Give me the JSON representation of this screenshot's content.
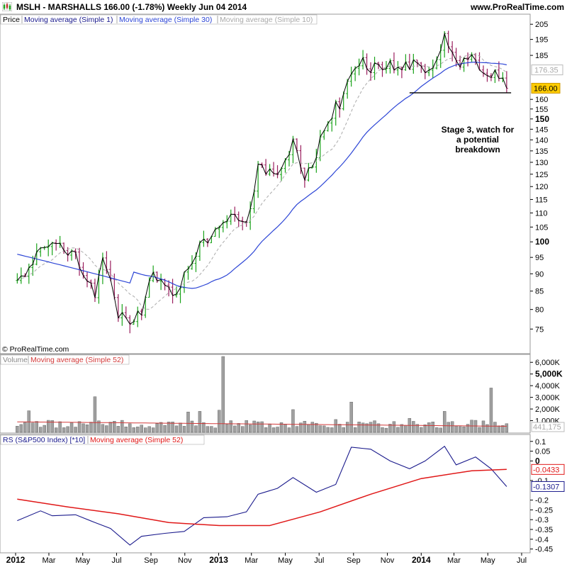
{
  "header": {
    "title": "MSLH - MARSHALLS    166.00 (-1.78%)    Weekly  Jun 04 2014",
    "url": "www.ProRealTime.com"
  },
  "colors": {
    "up": "#1aa31a",
    "down": "#9a1f5e",
    "ma1": "#000000",
    "ma30": "#2d46d6",
    "ma10": "#aaaaaa",
    "vol": "#a0a0a0",
    "volma": "#d23a3a",
    "rs": "#1a1a8c",
    "rsma": "#e01818"
  },
  "price_panel": {
    "legend": [
      "Price",
      "Moving average (Simple 1)",
      "Moving average (Simple 30)",
      "Moving average (Simple 10)"
    ],
    "copyright": "© ProRealTime.com",
    "annotation": [
      "Stage 3, watch for",
      "a potential",
      "breakdown"
    ],
    "ma30_value_label": "176.35",
    "last_price_label": "166.00",
    "bold_ticks": [
      "150",
      "100"
    ]
  },
  "volume_panel": {
    "legend": [
      "Volume",
      "Moving average (Simple 52)"
    ],
    "ma_value_label": "441,175",
    "bold_ticks": [
      "5,000K"
    ]
  },
  "rs_panel": {
    "legend": [
      "RS (S&P500 Index) [*10]",
      "Moving average (Simple 52)"
    ],
    "rs_value_label": "-0.1307",
    "ma_value_label": "-0.0433",
    "bold_ticks": [
      "0"
    ]
  },
  "x_axis": {
    "labels": [
      "2012",
      "Mar",
      "May",
      "Jul",
      "Sep",
      "Nov",
      "2013",
      "Mar",
      "May",
      "Jul",
      "Sep",
      "Nov",
      "2014",
      "Mar",
      "May",
      "Jul"
    ],
    "bold": [
      "2012",
      "2013",
      "2014"
    ]
  },
  "chart_data": [
    {
      "type": "candlestick",
      "title": "MSLH - MARSHALLS",
      "x_range": [
        "2012-01",
        "2014-07"
      ],
      "y_scale": "log",
      "ylim": [
        71,
        208
      ],
      "y_ticks": [
        "205",
        "195",
        "185",
        "176.35",
        "166.00",
        "160",
        "155",
        "150",
        "145",
        "140",
        "135",
        "130",
        "125",
        "120",
        "115",
        "110",
        "105",
        "100",
        "95",
        "90",
        "85",
        "80",
        "75"
      ],
      "close_series": [
        {
          "date": "2012-01-04",
          "close": 87
        },
        {
          "date": "2012-01-25",
          "close": 92
        },
        {
          "date": "2012-02-15",
          "close": 99
        },
        {
          "date": "2012-03-07",
          "close": 101
        },
        {
          "date": "2012-03-28",
          "close": 98
        },
        {
          "date": "2012-04-18",
          "close": 96
        },
        {
          "date": "2012-05-09",
          "close": 88
        },
        {
          "date": "2012-05-23",
          "close": 84
        },
        {
          "date": "2012-06-06",
          "close": 93
        },
        {
          "date": "2012-06-20",
          "close": 87
        },
        {
          "date": "2012-07-04",
          "close": 79
        },
        {
          "date": "2012-07-25",
          "close": 77
        },
        {
          "date": "2012-08-15",
          "close": 80
        },
        {
          "date": "2012-09-05",
          "close": 90
        },
        {
          "date": "2012-09-26",
          "close": 87
        },
        {
          "date": "2012-10-17",
          "close": 85
        },
        {
          "date": "2012-11-07",
          "close": 92
        },
        {
          "date": "2012-11-28",
          "close": 99
        },
        {
          "date": "2012-12-19",
          "close": 101
        },
        {
          "date": "2013-01-09",
          "close": 108
        },
        {
          "date": "2013-01-30",
          "close": 109
        },
        {
          "date": "2013-02-20",
          "close": 106
        },
        {
          "date": "2013-03-13",
          "close": 127
        },
        {
          "date": "2013-04-03",
          "close": 126
        },
        {
          "date": "2013-04-24",
          "close": 127
        },
        {
          "date": "2013-05-15",
          "close": 140
        },
        {
          "date": "2013-06-05",
          "close": 122
        },
        {
          "date": "2013-06-26",
          "close": 134
        },
        {
          "date": "2013-07-17",
          "close": 151
        },
        {
          "date": "2013-08-07",
          "close": 158
        },
        {
          "date": "2013-08-28",
          "close": 176
        },
        {
          "date": "2013-09-18",
          "close": 181
        },
        {
          "date": "2013-10-09",
          "close": 177
        },
        {
          "date": "2013-10-30",
          "close": 179
        },
        {
          "date": "2013-11-20",
          "close": 176
        },
        {
          "date": "2013-12-11",
          "close": 178
        },
        {
          "date": "2014-01-01",
          "close": 179
        },
        {
          "date": "2014-01-22",
          "close": 176
        },
        {
          "date": "2014-02-12",
          "close": 195
        },
        {
          "date": "2014-03-05",
          "close": 180
        },
        {
          "date": "2014-03-26",
          "close": 184
        },
        {
          "date": "2014-04-16",
          "close": 178
        },
        {
          "date": "2014-05-07",
          "close": 175
        },
        {
          "date": "2014-05-28",
          "close": 170
        },
        {
          "date": "2014-06-04",
          "close": 166
        }
      ],
      "horizontal_line": 163.5,
      "ma30_last": 176.35,
      "last_close": 166.0
    },
    {
      "type": "bar",
      "title": "Volume",
      "ylim": [
        0,
        6500000
      ],
      "y_ticks": [
        "6,000K",
        "5,000K",
        "4,000K",
        "3,000K",
        "2,000K",
        "1,000K"
      ],
      "ma52_last": 441175,
      "peak_volumes": [
        {
          "date": "2012-01-25",
          "volume": 1850000
        },
        {
          "date": "2012-05-23",
          "volume": 3050000
        },
        {
          "date": "2012-11-07",
          "volume": 1750000
        },
        {
          "date": "2012-11-28",
          "volume": 1800000
        },
        {
          "date": "2013-01-02",
          "volume": 1900000
        },
        {
          "date": "2013-01-09",
          "volume": 6500000
        },
        {
          "date": "2013-05-15",
          "volume": 1950000
        },
        {
          "date": "2013-07-31",
          "volume": 1100000
        },
        {
          "date": "2013-08-28",
          "volume": 2600000
        },
        {
          "date": "2013-12-11",
          "volume": 1200000
        },
        {
          "date": "2014-02-12",
          "volume": 1800000
        },
        {
          "date": "2014-05-07",
          "volume": 3800000
        }
      ]
    },
    {
      "type": "line",
      "title": "RS (S&P500 Index) [*10]",
      "ylim": [
        -0.46,
        0.12
      ],
      "y_ticks": [
        "0.1",
        "0.05",
        "0",
        "-0.0433",
        "-0.1",
        "-0.1307",
        "-0.2",
        "-0.25",
        "-0.3",
        "-0.35",
        "-0.4",
        "-0.45"
      ],
      "series": [
        {
          "name": "RS (S&P500 Index) [*10]",
          "points": [
            {
              "date": "2012-01-04",
              "value": -0.305
            },
            {
              "date": "2012-02-15",
              "value": -0.255
            },
            {
              "date": "2012-03-07",
              "value": -0.28
            },
            {
              "date": "2012-04-18",
              "value": -0.275
            },
            {
              "date": "2012-05-23",
              "value": -0.315
            },
            {
              "date": "2012-06-20",
              "value": -0.345
            },
            {
              "date": "2012-07-25",
              "value": -0.43
            },
            {
              "date": "2012-08-15",
              "value": -0.385
            },
            {
              "date": "2012-09-26",
              "value": -0.37
            },
            {
              "date": "2012-10-31",
              "value": -0.36
            },
            {
              "date": "2012-12-05",
              "value": -0.29
            },
            {
              "date": "2013-01-16",
              "value": -0.285
            },
            {
              "date": "2013-02-20",
              "value": -0.26
            },
            {
              "date": "2013-03-13",
              "value": -0.17
            },
            {
              "date": "2013-04-17",
              "value": -0.14
            },
            {
              "date": "2013-05-15",
              "value": -0.085
            },
            {
              "date": "2013-06-26",
              "value": -0.16
            },
            {
              "date": "2013-07-31",
              "value": -0.12
            },
            {
              "date": "2013-08-28",
              "value": 0.07
            },
            {
              "date": "2013-10-02",
              "value": 0.06
            },
            {
              "date": "2013-11-06",
              "value": 0.0
            },
            {
              "date": "2013-12-11",
              "value": -0.04
            },
            {
              "date": "2014-01-08",
              "value": 0.0
            },
            {
              "date": "2014-02-12",
              "value": 0.075
            },
            {
              "date": "2014-03-05",
              "value": -0.02
            },
            {
              "date": "2014-04-09",
              "value": 0.02
            },
            {
              "date": "2014-05-07",
              "value": -0.04
            },
            {
              "date": "2014-06-04",
              "value": -0.1307
            }
          ]
        },
        {
          "name": "Moving average (Simple 52)",
          "points": [
            {
              "date": "2012-01-04",
              "value": -0.195
            },
            {
              "date": "2012-04-04",
              "value": -0.235
            },
            {
              "date": "2012-07-04",
              "value": -0.27
            },
            {
              "date": "2012-10-03",
              "value": -0.315
            },
            {
              "date": "2013-01-02",
              "value": -0.33
            },
            {
              "date": "2013-04-03",
              "value": -0.33
            },
            {
              "date": "2013-07-03",
              "value": -0.26
            },
            {
              "date": "2013-10-02",
              "value": -0.17
            },
            {
              "date": "2014-01-01",
              "value": -0.09
            },
            {
              "date": "2014-04-02",
              "value": -0.05
            },
            {
              "date": "2014-06-04",
              "value": -0.0433
            }
          ]
        }
      ]
    }
  ]
}
